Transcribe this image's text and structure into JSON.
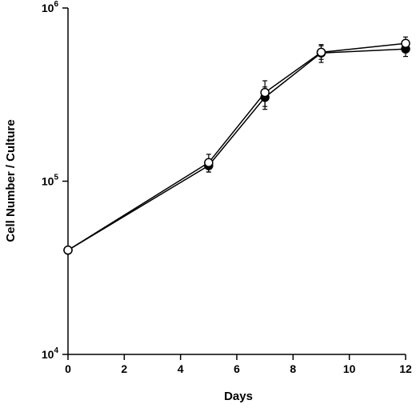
{
  "chart_data": {
    "type": "line",
    "xlabel": "Days",
    "ylabel": "Cell Number / Culture",
    "xlim": [
      0,
      12
    ],
    "ylim": [
      10000,
      1000000
    ],
    "yscale": "log",
    "xticks": [
      "0",
      "2",
      "4",
      "6",
      "8",
      "10",
      "12"
    ],
    "yticks": [
      {
        "base": "10",
        "exp": "4"
      },
      {
        "base": "10",
        "exp": "5"
      },
      {
        "base": "10",
        "exp": "6"
      }
    ],
    "grid": false,
    "series": [
      {
        "marker": "filled-circle",
        "color": "#000000",
        "x": [
          0,
          5,
          7,
          9,
          12
        ],
        "y": [
          40000,
          123000,
          305000,
          550000,
          580000
        ],
        "err": [
          0,
          10000,
          45000,
          65000,
          55000
        ]
      },
      {
        "marker": "open-circle",
        "color": "#000000",
        "x": [
          0,
          5,
          7,
          9,
          12
        ],
        "y": [
          40000,
          128000,
          325000,
          555000,
          625000
        ],
        "err": [
          0,
          15000,
          55000,
          50000,
          55000
        ]
      }
    ]
  }
}
